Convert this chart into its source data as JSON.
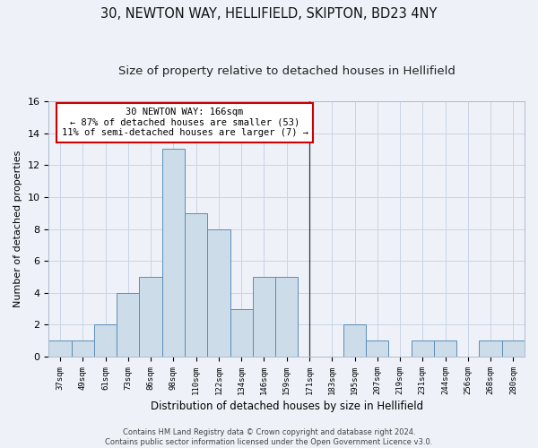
{
  "title": "30, NEWTON WAY, HELLIFIELD, SKIPTON, BD23 4NY",
  "subtitle": "Size of property relative to detached houses in Hellifield",
  "xlabel": "Distribution of detached houses by size in Hellifield",
  "ylabel": "Number of detached properties",
  "bins": [
    "37sqm",
    "49sqm",
    "61sqm",
    "73sqm",
    "86sqm",
    "98sqm",
    "110sqm",
    "122sqm",
    "134sqm",
    "146sqm",
    "159sqm",
    "171sqm",
    "183sqm",
    "195sqm",
    "207sqm",
    "219sqm",
    "231sqm",
    "244sqm",
    "256sqm",
    "268sqm",
    "280sqm"
  ],
  "counts": [
    1,
    1,
    2,
    4,
    5,
    13,
    9,
    8,
    3,
    5,
    5,
    0,
    0,
    2,
    1,
    0,
    1,
    1,
    0,
    1,
    1
  ],
  "bar_color": "#ccdce8",
  "bar_edge_color": "#5b8db8",
  "vline_color": "#333333",
  "vline_x": 11.0,
  "annotation_text": "30 NEWTON WAY: 166sqm\n← 87% of detached houses are smaller (53)\n11% of semi-detached houses are larger (7) →",
  "annotation_box_color": "#ffffff",
  "annotation_box_edge_color": "#cc0000",
  "grid_color": "#c8d4e4",
  "footnote": "Contains HM Land Registry data © Crown copyright and database right 2024.\nContains public sector information licensed under the Open Government Licence v3.0.",
  "ylim": [
    0,
    16
  ],
  "yticks": [
    0,
    2,
    4,
    6,
    8,
    10,
    12,
    14,
    16
  ],
  "bg_color": "#eef2f8",
  "title_fontsize": 10.5,
  "subtitle_fontsize": 9.5
}
